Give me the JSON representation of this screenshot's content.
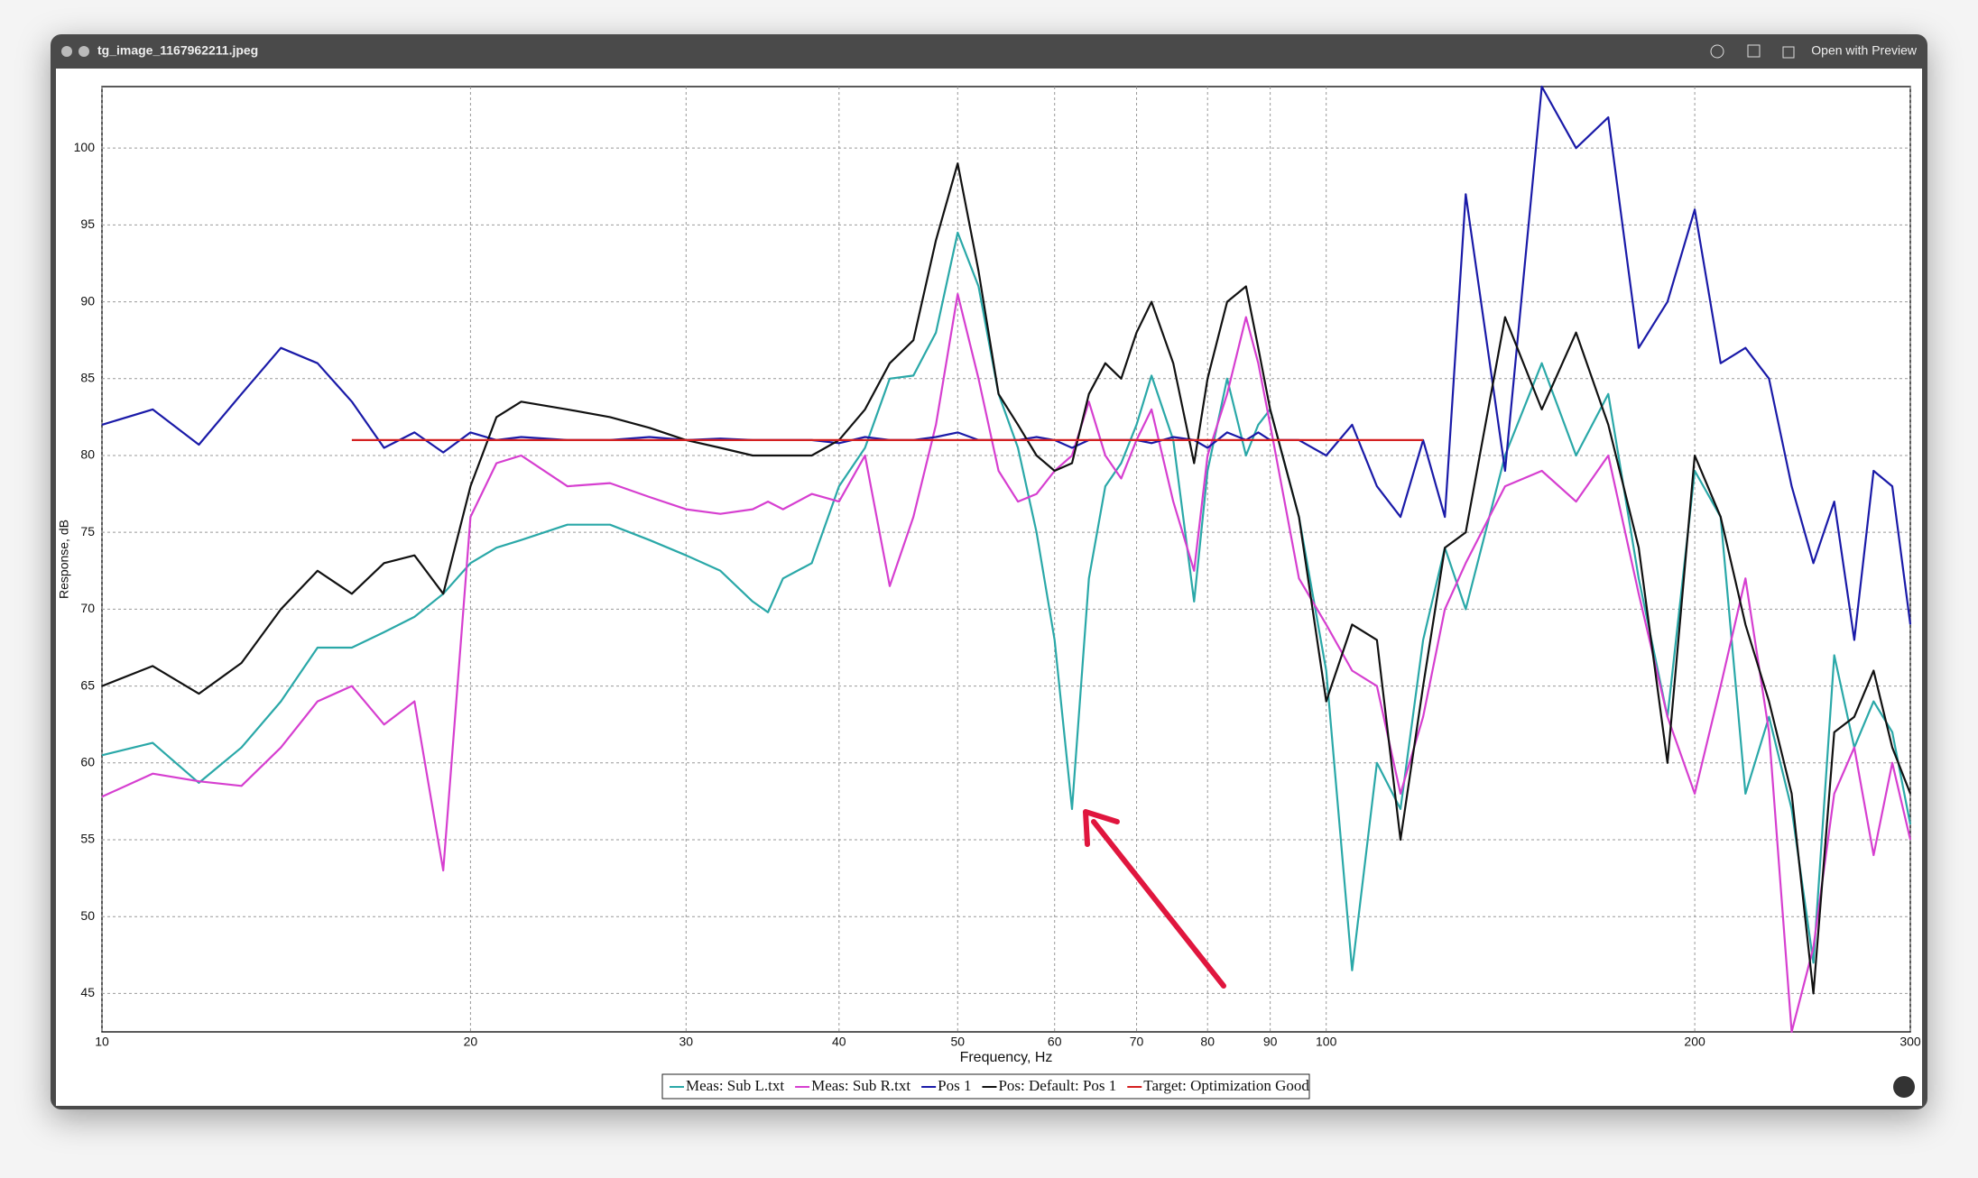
{
  "window": {
    "title": "tg_image_1167962211.jpeg",
    "action": "Open with Preview"
  },
  "chart_data": {
    "type": "line",
    "xlabel": "Frequency, Hz",
    "ylabel": "Response, dB",
    "xscale": "log",
    "grid": true,
    "xlim": [
      10,
      300
    ],
    "ylim": [
      42.5,
      104
    ],
    "xticks": [
      10,
      20,
      30,
      40,
      50,
      60,
      70,
      80,
      90,
      100,
      200,
      300
    ],
    "yticks": [
      45,
      50,
      55,
      60,
      65,
      70,
      75,
      80,
      85,
      90,
      95,
      100
    ],
    "x": [
      10,
      11,
      12,
      13,
      14,
      15,
      16,
      17,
      18,
      19,
      20,
      21,
      22,
      24,
      26,
      28,
      30,
      32,
      34,
      35,
      36,
      38,
      40,
      42,
      44,
      46,
      48,
      50,
      52,
      54,
      56,
      58,
      60,
      62,
      64,
      66,
      68,
      70,
      72,
      75,
      78,
      80,
      83,
      86,
      88,
      90,
      95,
      100,
      105,
      110,
      115,
      120,
      125,
      130,
      140,
      150,
      160,
      170,
      180,
      190,
      200,
      210,
      220,
      230,
      240,
      250,
      260,
      270,
      280,
      290,
      300
    ],
    "series": [
      {
        "name": "Meas: Sub L.txt",
        "color": "#2aa8a8",
        "values": [
          60.5,
          61.3,
          58.7,
          61,
          64,
          67.5,
          67.5,
          68.5,
          69.5,
          71,
          73,
          74,
          74.5,
          75.5,
          75.5,
          74.5,
          73.5,
          72.5,
          70.5,
          69.8,
          72,
          73,
          78,
          80.5,
          85,
          85.2,
          88,
          94.5,
          91,
          84,
          80.5,
          75,
          68,
          57,
          72,
          78,
          79.5,
          82,
          85.2,
          81,
          70.5,
          79,
          85,
          80,
          82,
          83,
          76,
          66,
          46.5,
          60,
          57,
          68,
          74,
          70,
          80,
          86,
          80,
          84,
          72,
          63,
          79,
          76,
          58,
          63,
          57,
          47,
          67,
          61,
          64,
          62,
          56
        ]
      },
      {
        "name": "Meas: Sub R.txt",
        "color": "#d63fd0",
        "values": [
          57.8,
          59.3,
          58.8,
          58.5,
          61,
          64,
          65,
          62.5,
          64,
          53,
          76,
          79.5,
          80,
          78,
          78.2,
          77.3,
          76.5,
          76.2,
          76.5,
          77,
          76.5,
          77.5,
          77,
          80,
          71.5,
          76,
          82,
          90.5,
          85,
          79,
          77,
          77.5,
          79,
          80,
          83.5,
          80,
          78.5,
          81,
          83,
          77,
          72.5,
          80,
          84,
          89,
          86,
          82,
          72,
          69,
          66,
          65,
          58,
          63,
          70,
          73,
          78,
          79,
          77,
          80,
          71,
          63,
          58,
          65,
          72,
          62,
          42.5,
          48,
          58,
          61,
          54,
          60,
          55
        ]
      },
      {
        "name": "Pos 1",
        "color": "#1a1aa8",
        "values": [
          82,
          83,
          80.7,
          84,
          87,
          86,
          83.5,
          80.5,
          81.5,
          80.2,
          81.5,
          81,
          81.2,
          81,
          81,
          81.2,
          81,
          81.1,
          81,
          81,
          81,
          81,
          80.8,
          81.2,
          81,
          81,
          81.2,
          81.5,
          81,
          81,
          81,
          81.2,
          81,
          80.5,
          81,
          81,
          81,
          81,
          80.8,
          81.2,
          81,
          80.5,
          81.5,
          81,
          81.5,
          81,
          81,
          80,
          82,
          78,
          76,
          81,
          76,
          97,
          79,
          104,
          100,
          102,
          87,
          90,
          96,
          86,
          87,
          85,
          78,
          73,
          77,
          68,
          79,
          78,
          69
        ]
      },
      {
        "name": "Pos: Default: Pos 1",
        "color": "#111111",
        "values": [
          65,
          66.3,
          64.5,
          66.5,
          70,
          72.5,
          71,
          73,
          73.5,
          71,
          78,
          82.5,
          83.5,
          83,
          82.5,
          81.8,
          81,
          80.5,
          80,
          80,
          80,
          80,
          81,
          83,
          86,
          87.5,
          94,
          99,
          92,
          84,
          82,
          80,
          79,
          79.5,
          84,
          86,
          85,
          88,
          90,
          86,
          79.5,
          85,
          90,
          91,
          87,
          83,
          76,
          64,
          69,
          68,
          55,
          65,
          74,
          75,
          89,
          83,
          88,
          82,
          74,
          60,
          80,
          76,
          69,
          64,
          58,
          45,
          62,
          63,
          66,
          61,
          58
        ]
      },
      {
        "name": "Target: Optimization Good",
        "color": "#d42020",
        "values": [
          null,
          null,
          null,
          null,
          null,
          null,
          81,
          81,
          81,
          81,
          81,
          81,
          81,
          81,
          81,
          81,
          81,
          81,
          81,
          81,
          81,
          81,
          81,
          81,
          81,
          81,
          81,
          81,
          81,
          81,
          81,
          81,
          81,
          81,
          81,
          81,
          81,
          81,
          81,
          81,
          81,
          81,
          81,
          81,
          81,
          81,
          81,
          81,
          81,
          81,
          81,
          81,
          null,
          null,
          null,
          null,
          null,
          null,
          null,
          null,
          null,
          null,
          null,
          null,
          null,
          null,
          null,
          null,
          null,
          null,
          null
        ]
      }
    ]
  }
}
